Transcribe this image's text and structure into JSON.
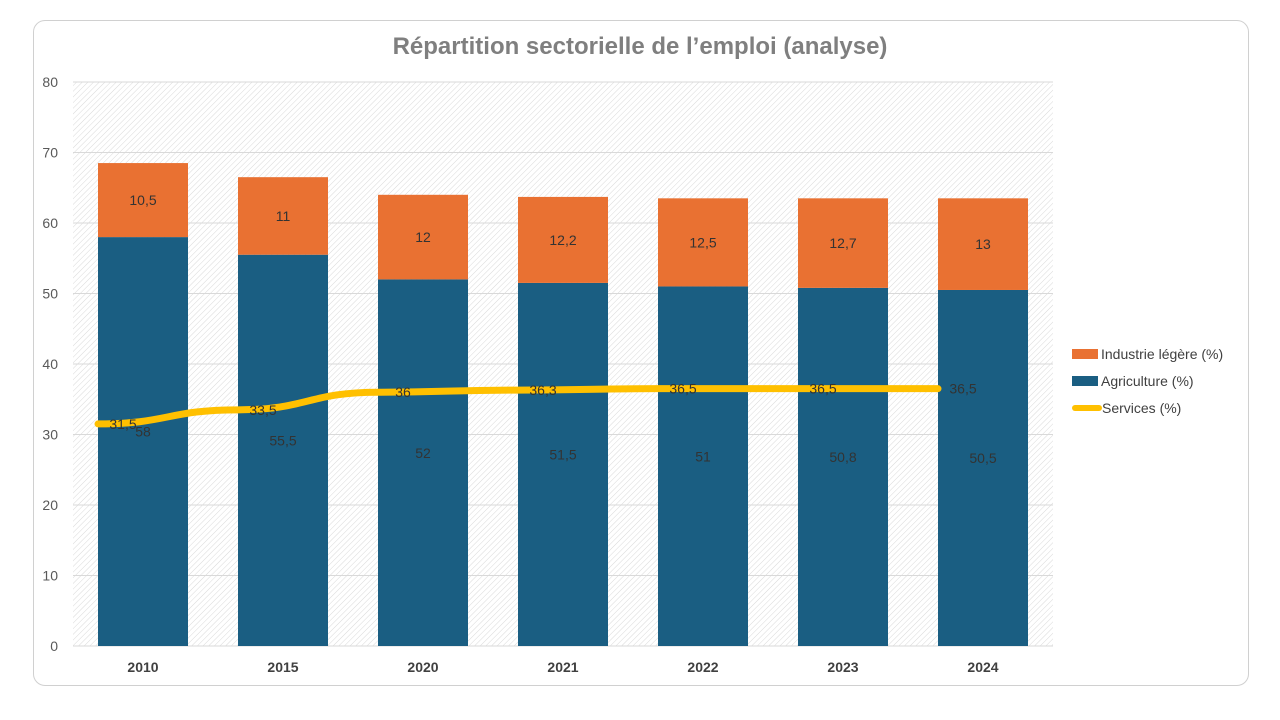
{
  "chart_data": {
    "type": "bar",
    "stacked": true,
    "title": "Répartition sectorielle de l’emploi (analyse)",
    "xlabel": "",
    "ylabel": "",
    "categories": [
      "2010",
      "2015",
      "2020",
      "2021",
      "2022",
      "2023",
      "2024"
    ],
    "ylim": [
      0,
      80
    ],
    "yticks": [
      0,
      10,
      20,
      30,
      40,
      50,
      60,
      70,
      80
    ],
    "grid": true,
    "legend": "right",
    "series": [
      {
        "name": "Agriculture (%)",
        "type": "bar",
        "color": "#1a5e82",
        "values": [
          58,
          55.5,
          52,
          51.5,
          51,
          50.8,
          50.5
        ],
        "labels": [
          "58",
          "55,5",
          "52",
          "51,5",
          "51",
          "50,8",
          "50,5"
        ]
      },
      {
        "name": "Industrie légère (%)",
        "type": "bar",
        "color": "#e97132",
        "values": [
          10.5,
          11,
          12,
          12.2,
          12.5,
          12.7,
          13
        ],
        "labels": [
          "10,5",
          "11",
          "12",
          "12,2",
          "12,5",
          "12,7",
          "13"
        ]
      },
      {
        "name": "Services (%)",
        "type": "line",
        "color": "#ffc000",
        "values": [
          31.5,
          33.5,
          36,
          36.3,
          36.5,
          36.5,
          36.5
        ],
        "labels": [
          "31,5",
          "33,5",
          "36",
          "36,3",
          "36,5",
          "36,5",
          "36,5"
        ]
      }
    ]
  }
}
